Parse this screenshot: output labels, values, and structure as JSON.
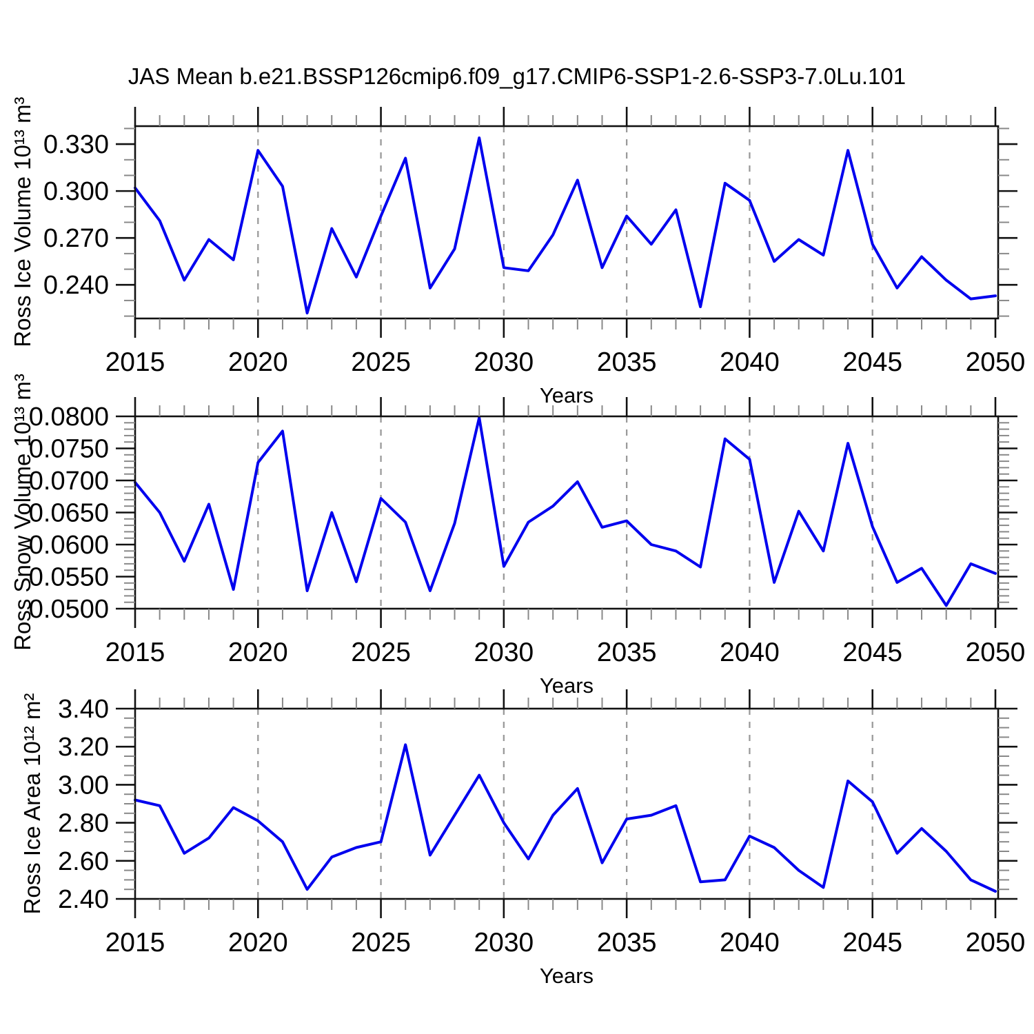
{
  "title": "JAS Mean b.e21.BSSP126cmip6.f09_g17.CMIP6-SSP1-2.6-SSP3-7.0Lu.101",
  "xlabel": "Years",
  "colors": {
    "line": "#0000ee",
    "grid": "#9a9a9a",
    "axis": "#111111",
    "minor_tick": "#888888"
  },
  "chart_data": [
    {
      "type": "line",
      "ylabel": "Ross Ice Volume 10¹³ m³",
      "xlabel": "Years",
      "x": [
        2015,
        2016,
        2017,
        2018,
        2019,
        2020,
        2021,
        2022,
        2023,
        2024,
        2025,
        2026,
        2027,
        2028,
        2029,
        2030,
        2031,
        2032,
        2033,
        2034,
        2035,
        2036,
        2037,
        2038,
        2039,
        2040,
        2041,
        2042,
        2043,
        2044,
        2045,
        2046,
        2047,
        2048,
        2049,
        2050
      ],
      "values": [
        0.302,
        0.281,
        0.243,
        0.269,
        0.256,
        0.326,
        0.303,
        0.222,
        0.276,
        0.245,
        0.284,
        0.321,
        0.238,
        0.263,
        0.334,
        0.251,
        0.249,
        0.272,
        0.307,
        0.251,
        0.284,
        0.266,
        0.288,
        0.226,
        0.305,
        0.294,
        0.255,
        0.269,
        0.259,
        0.326,
        0.266,
        0.238,
        0.258,
        0.243,
        0.231,
        0.233
      ],
      "ylim": [
        0.2185,
        0.3415
      ],
      "yticks": [
        0.24,
        0.27,
        0.3,
        0.33
      ],
      "ytick_labels": [
        "0.240",
        "0.270",
        "0.300",
        "0.330"
      ],
      "yminor_step": 0.01,
      "xticks": [
        2015,
        2020,
        2025,
        2030,
        2035,
        2040,
        2045,
        2050
      ],
      "xtick_labels": [
        "2015",
        "2020",
        "2025",
        "2030",
        "2035",
        "2040",
        "2045",
        "2050"
      ],
      "xminor_step": 1,
      "grid_x": [
        2020,
        2025,
        2030,
        2035,
        2040,
        2045
      ],
      "grid": "vertical-dashed",
      "legend": "none"
    },
    {
      "type": "line",
      "ylabel": "Ross Snow Volume 10¹³ m³",
      "xlabel": "Years",
      "x": [
        2015,
        2016,
        2017,
        2018,
        2019,
        2020,
        2021,
        2022,
        2023,
        2024,
        2025,
        2026,
        2027,
        2028,
        2029,
        2030,
        2031,
        2032,
        2033,
        2034,
        2035,
        2036,
        2037,
        2038,
        2039,
        2040,
        2041,
        2042,
        2043,
        2044,
        2045,
        2046,
        2047,
        2048,
        2049,
        2050
      ],
      "values": [
        0.0697,
        0.065,
        0.0574,
        0.0663,
        0.053,
        0.0728,
        0.0777,
        0.0528,
        0.065,
        0.0542,
        0.0672,
        0.0635,
        0.0528,
        0.0633,
        0.0798,
        0.0566,
        0.0635,
        0.066,
        0.0698,
        0.0627,
        0.0637,
        0.06,
        0.059,
        0.0565,
        0.0765,
        0.0733,
        0.0541,
        0.0652,
        0.059,
        0.0758,
        0.0628,
        0.0541,
        0.0563,
        0.0505,
        0.057,
        0.0555
      ],
      "ylim": [
        0.05,
        0.08
      ],
      "yticks": [
        0.05,
        0.055,
        0.06,
        0.065,
        0.07,
        0.075,
        0.08
      ],
      "ytick_labels": [
        "0.0500",
        "0.0550",
        "0.0600",
        "0.0650",
        "0.0700",
        "0.0750",
        "0.0800"
      ],
      "yminor_step": 0.001,
      "xticks": [
        2015,
        2020,
        2025,
        2030,
        2035,
        2040,
        2045,
        2050
      ],
      "xtick_labels": [
        "2015",
        "2020",
        "2025",
        "2030",
        "2035",
        "2040",
        "2045",
        "2050"
      ],
      "xminor_step": 1,
      "grid_x": [
        2020,
        2025,
        2030,
        2035,
        2040,
        2045
      ],
      "grid": "vertical-dashed",
      "legend": "none"
    },
    {
      "type": "line",
      "ylabel": "Ross Ice Area 10¹² m²",
      "xlabel": "Years",
      "x": [
        2015,
        2016,
        2017,
        2018,
        2019,
        2020,
        2021,
        2022,
        2023,
        2024,
        2025,
        2026,
        2027,
        2028,
        2029,
        2030,
        2031,
        2032,
        2033,
        2034,
        2035,
        2036,
        2037,
        2038,
        2039,
        2040,
        2041,
        2042,
        2043,
        2044,
        2045,
        2046,
        2047,
        2048,
        2049,
        2050
      ],
      "values": [
        2.92,
        2.89,
        2.64,
        2.72,
        2.88,
        2.81,
        2.7,
        2.45,
        2.62,
        2.67,
        2.7,
        3.21,
        2.63,
        2.84,
        3.05,
        2.8,
        2.61,
        2.84,
        2.98,
        2.59,
        2.82,
        2.84,
        2.89,
        2.49,
        2.5,
        2.73,
        2.67,
        2.55,
        2.46,
        3.02,
        2.91,
        2.64,
        2.77,
        2.65,
        2.5,
        2.44
      ],
      "ylim": [
        2.4,
        3.4
      ],
      "yticks": [
        2.4,
        2.6,
        2.8,
        3.0,
        3.2,
        3.4
      ],
      "ytick_labels": [
        "2.40",
        "2.60",
        "2.80",
        "3.00",
        "3.20",
        "3.40"
      ],
      "yminor_step": 0.05,
      "xticks": [
        2015,
        2020,
        2025,
        2030,
        2035,
        2040,
        2045,
        2050
      ],
      "xtick_labels": [
        "2015",
        "2020",
        "2025",
        "2030",
        "2035",
        "2040",
        "2045",
        "2050"
      ],
      "xminor_step": 1,
      "grid_x": [
        2020,
        2025,
        2030,
        2035,
        2040,
        2045
      ],
      "grid": "vertical-dashed",
      "legend": "none"
    }
  ]
}
